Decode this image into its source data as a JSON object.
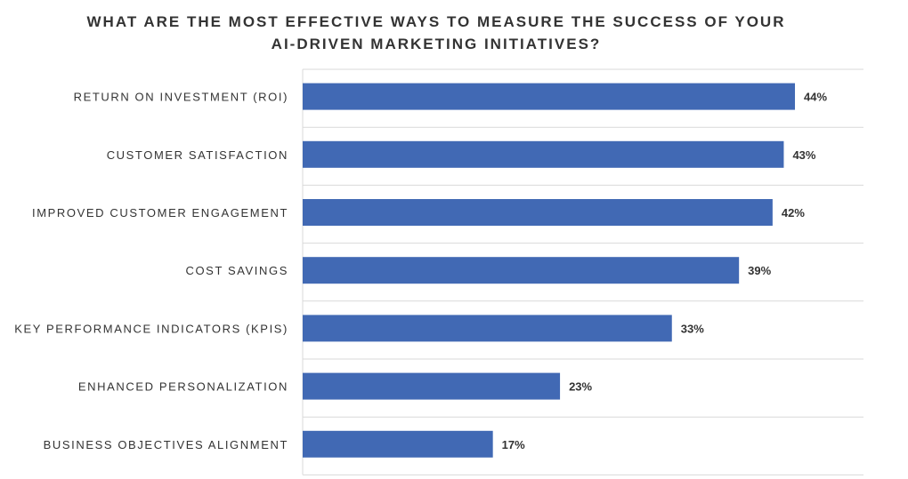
{
  "chart_data": {
    "type": "bar",
    "orientation": "horizontal",
    "title_lines": [
      "WHAT ARE THE MOST EFFECTIVE WAYS TO MEASURE THE SUCCESS OF YOUR",
      "AI-DRIVEN MARKETING INITIATIVES?"
    ],
    "categories": [
      "RETURN ON INVESTMENT (ROI)",
      "CUSTOMER SATISFACTION",
      "IMPROVED CUSTOMER ENGAGEMENT",
      "COST SAVINGS",
      "KEY PERFORMANCE INDICATORS (KPIS)",
      "ENHANCED PERSONALIZATION",
      "BUSINESS OBJECTIVES ALIGNMENT"
    ],
    "values": [
      44,
      43,
      42,
      39,
      33,
      23,
      17
    ],
    "value_labels": [
      "44%",
      "43%",
      "42%",
      "39%",
      "33%",
      "23%",
      "17%"
    ],
    "xlim": [
      0,
      50
    ],
    "bar_color": "#4169b4",
    "grid": true,
    "legend": "none"
  }
}
